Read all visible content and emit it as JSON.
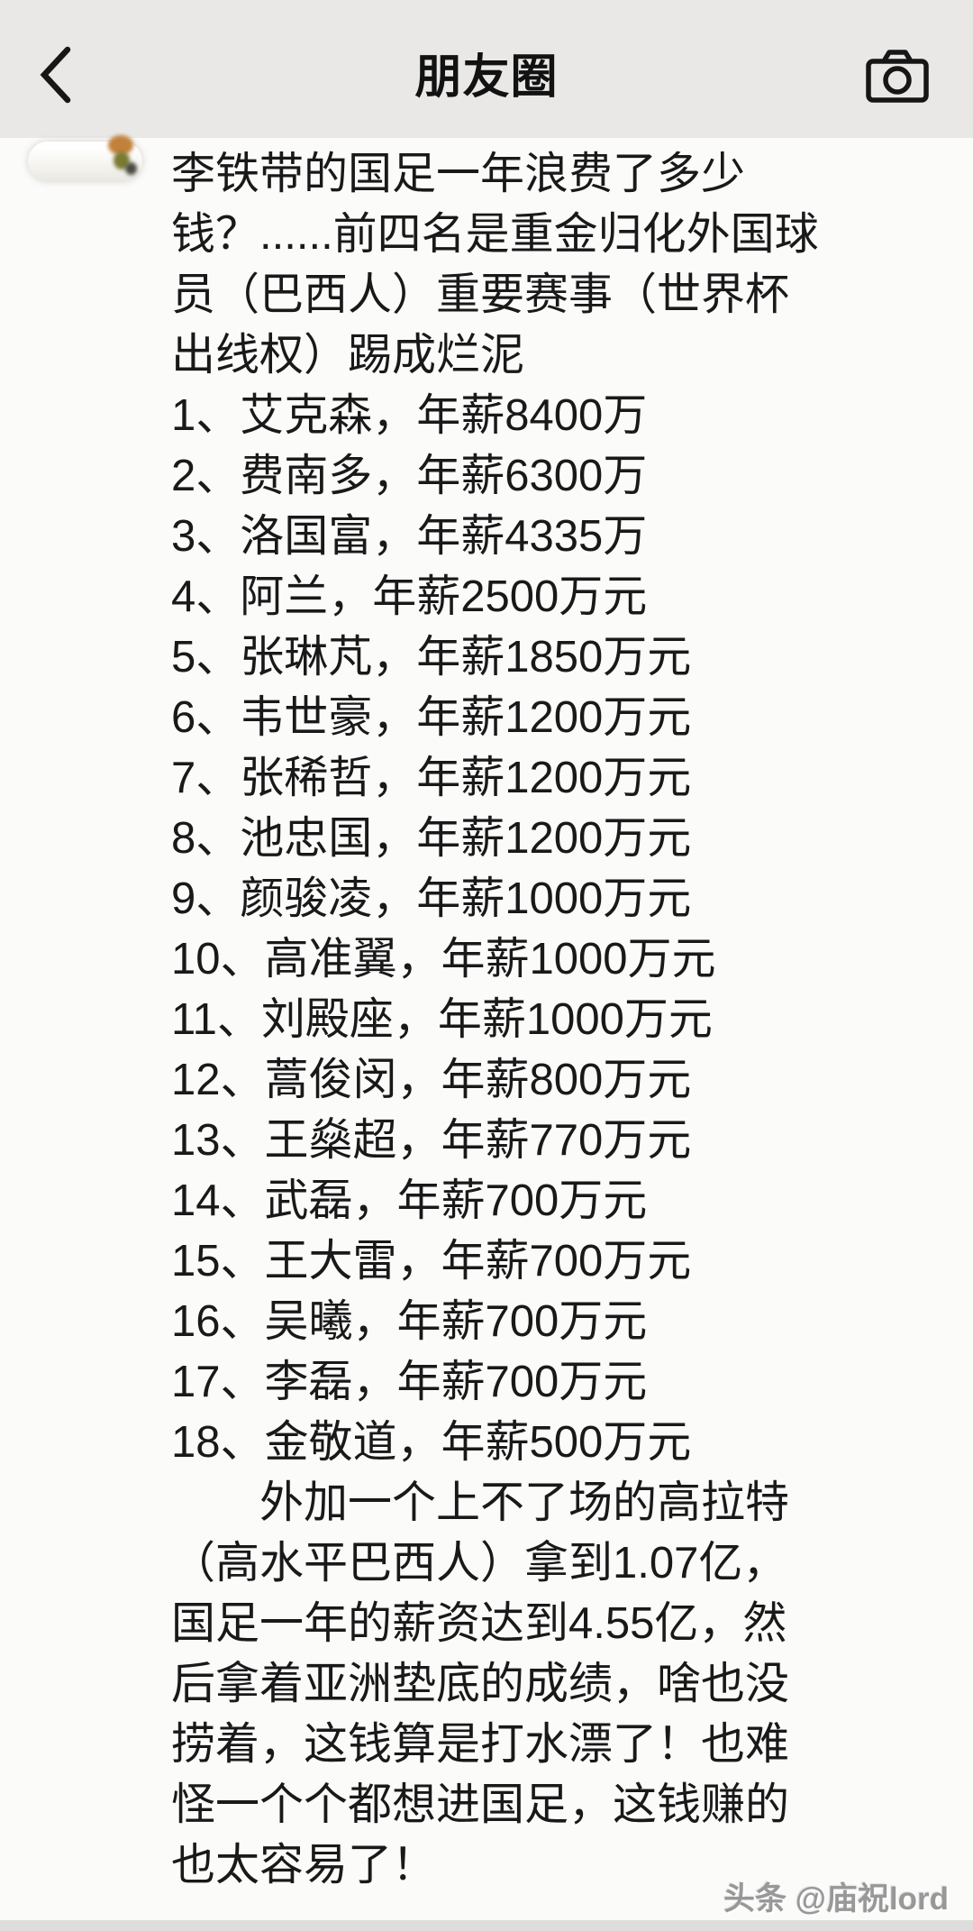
{
  "header": {
    "title": "朋友圈",
    "back_icon": "chevron-left",
    "camera_icon": "camera-outline"
  },
  "post": {
    "avatar": "blurred-capsule-avatar",
    "intro_lines": [
      "李铁带的国足一年浪费了多少",
      "钱？......前四名是重金归化外国球",
      "员（巴西人）重要赛事（世界杯",
      "出线权）踢成烂泥"
    ],
    "salary_lines": [
      "1、艾克森，年薪8400万",
      "2、费南多，年薪6300万",
      "3、洛国富，年薪4335万",
      "4、阿兰，年薪2500万元",
      "5、张琳芃，年薪1850万元",
      "6、韦世豪，年薪1200万元",
      "7、张稀哲，年薪1200万元",
      "8、池忠国，年薪1200万元",
      "9、颜骏凌，年薪1000万元",
      "10、高准翼，年薪1000万元",
      "11、刘殿座，年薪1000万元",
      "12、蒿俊闵，年薪800万元",
      "13、王燊超，年薪770万元",
      "14、武磊，年薪700万元",
      "15、王大雷，年薪700万元",
      "16、吴曦，年薪700万元",
      "17、李磊，年薪700万元",
      "18、金敬道，年薪500万元"
    ],
    "outro_lines": [
      "　　外加一个上不了场的高拉特",
      "（高水平巴西人）拿到1.07亿，",
      "国足一年的薪资达到4.55亿，然",
      "后拿着亚洲垫底的成绩，啥也没",
      "捞着，这钱算是打水漂了！也难",
      "怪一个个都想进国足，这钱赚的",
      "也太容易了！"
    ]
  },
  "watermark": {
    "text": "头条 @庙祝lord"
  },
  "colors": {
    "navbar_bg": "#e9e8e6",
    "content_bg": "#fbfbfa",
    "text": "#191919",
    "watermark": "#989898",
    "bottom_bar": "#dedddb"
  }
}
